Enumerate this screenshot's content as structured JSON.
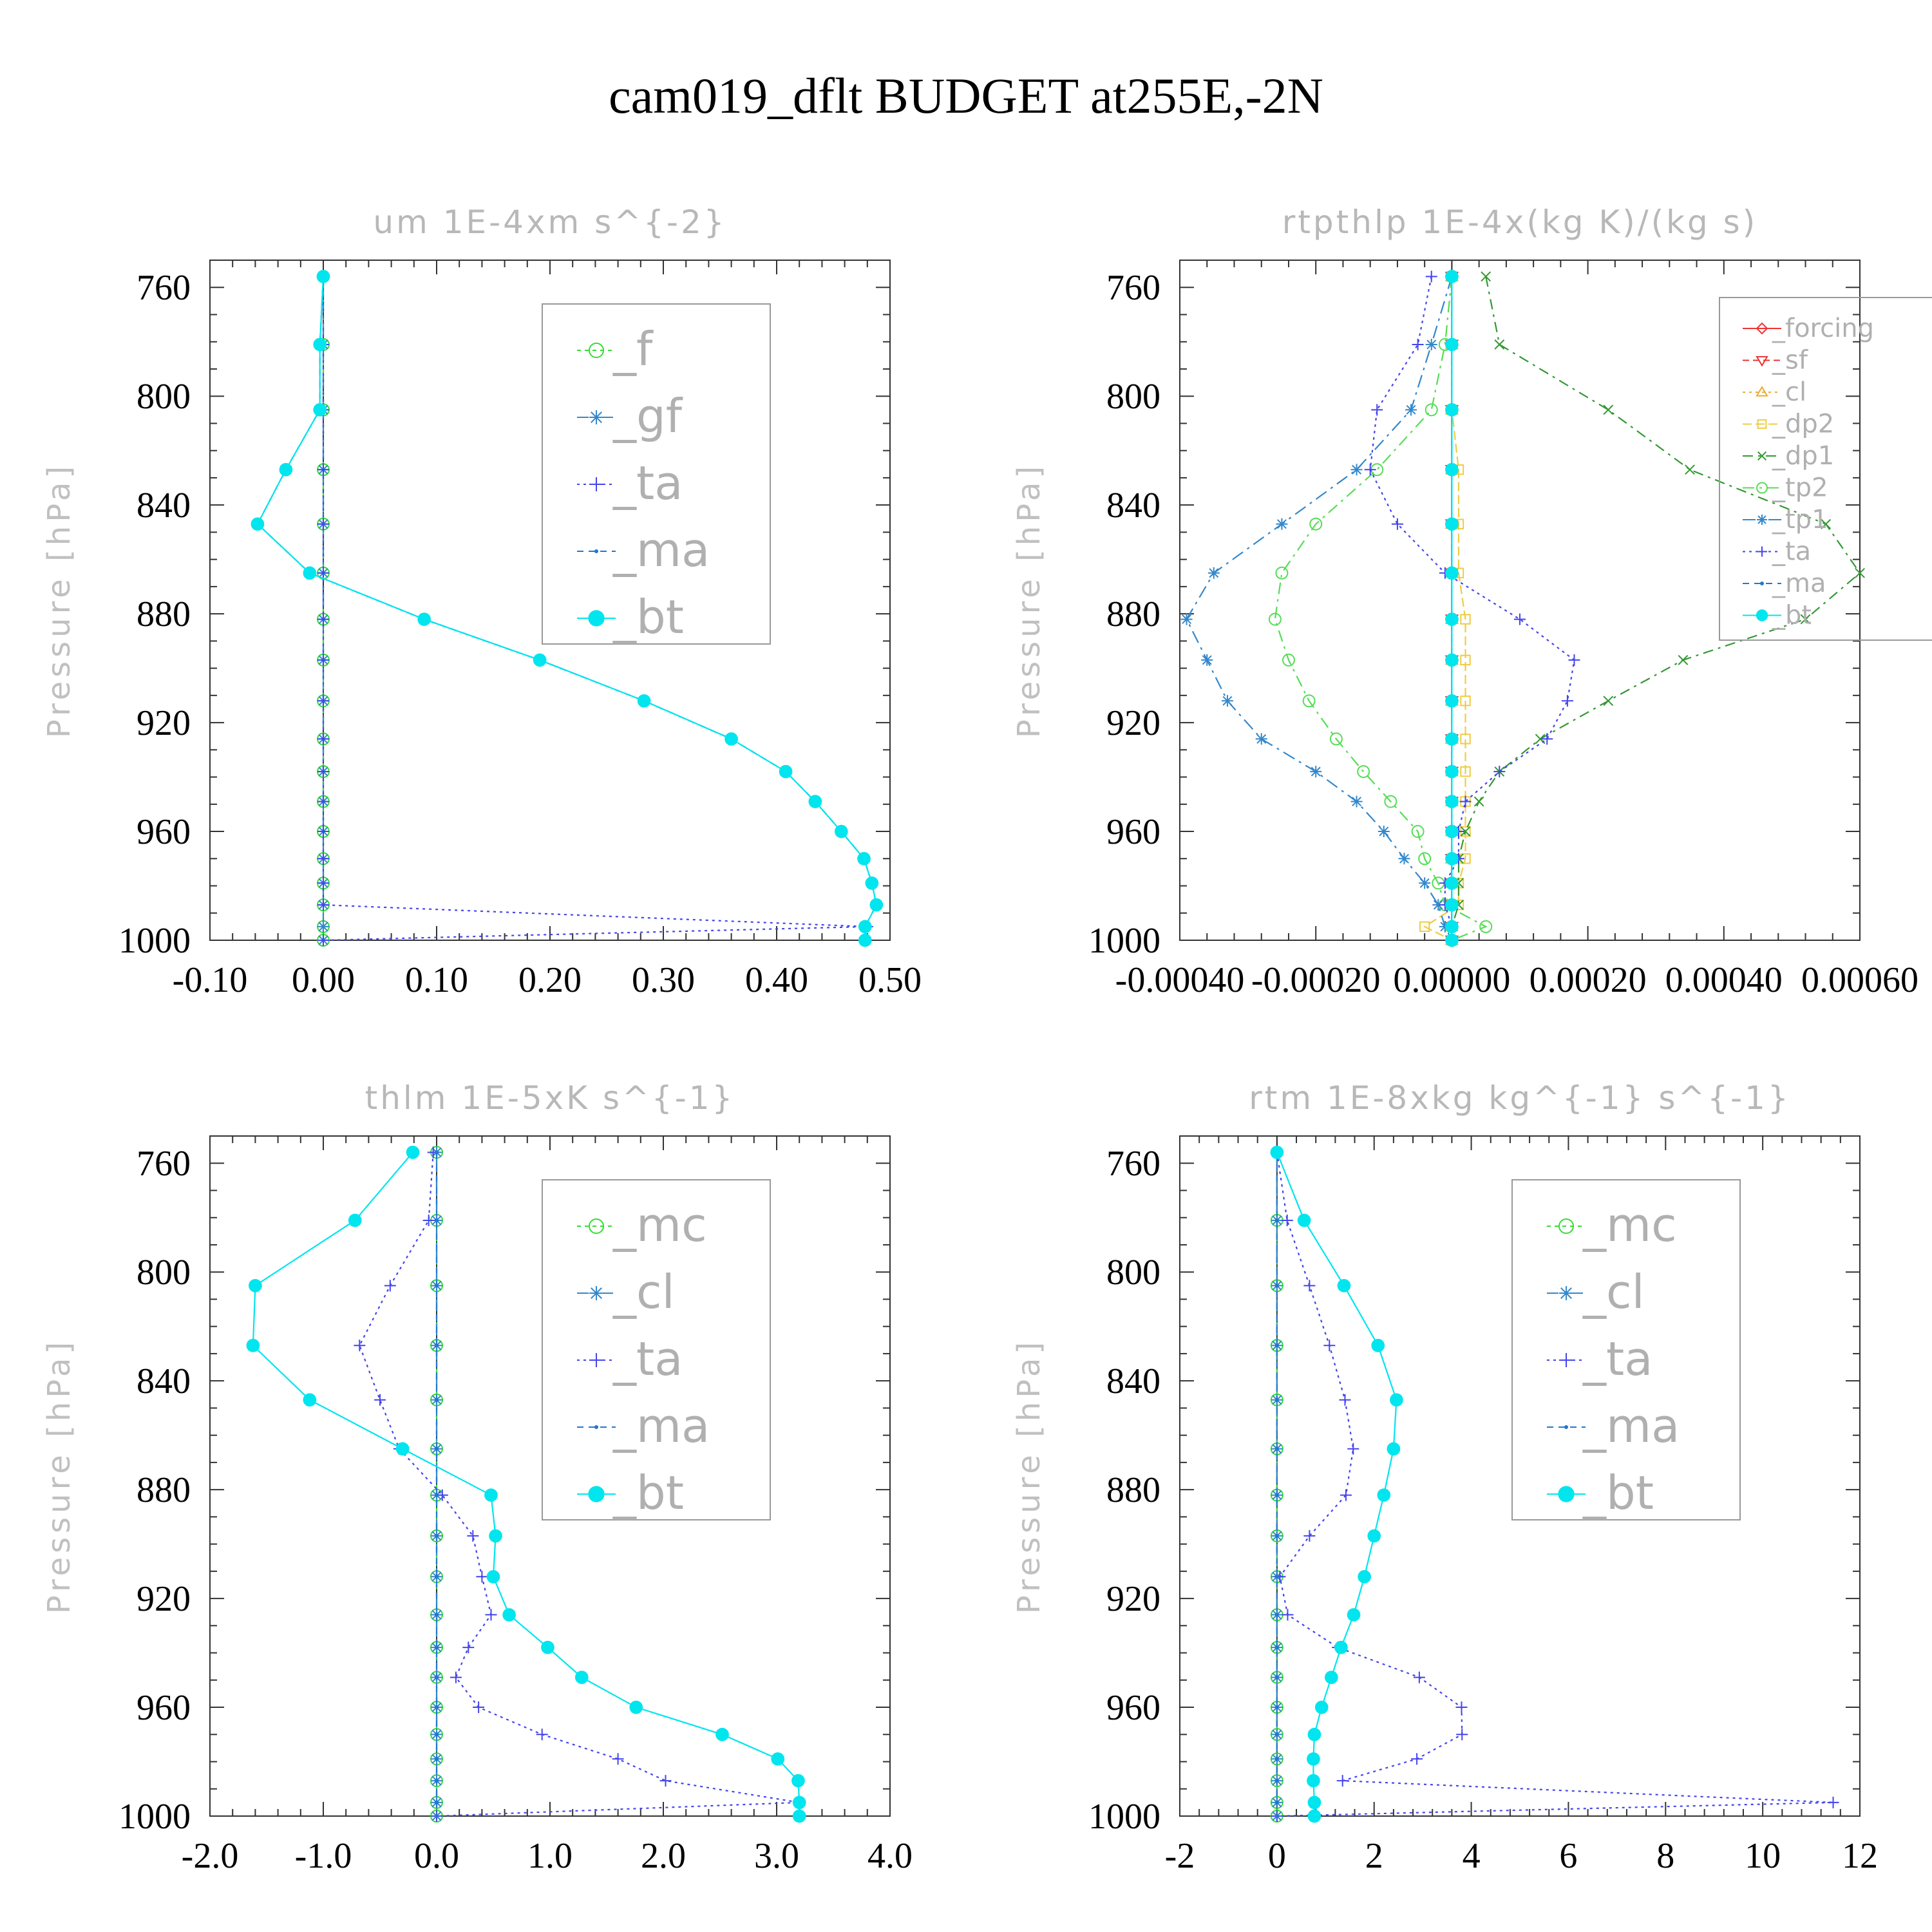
{
  "title": "cam019_dflt  BUDGET at255E,-2N",
  "chart_data": [
    {
      "type": "line",
      "title": "um  1E-4xm s^{-2}",
      "ylabel": "Pressure [hPa]",
      "xlim": [
        -0.1,
        0.5
      ],
      "ylim": [
        1000,
        750
      ],
      "xticks": [
        "-0.10",
        "0.00",
        "0.10",
        "0.20",
        "0.30",
        "0.40",
        "0.50"
      ],
      "xtick_values": [
        -0.1,
        0.0,
        0.1,
        0.2,
        0.3,
        0.4,
        0.5
      ],
      "yticks": [
        "760",
        "800",
        "840",
        "880",
        "920",
        "960",
        "1000"
      ],
      "ytick_values": [
        760,
        800,
        840,
        880,
        920,
        960,
        1000
      ],
      "legend_position": "top-right",
      "legend_size": "large",
      "y": [
        756,
        781,
        805,
        827,
        847,
        865,
        882,
        897,
        912,
        926,
        938,
        949,
        960,
        970,
        979,
        987,
        995,
        1000
      ],
      "series": [
        {
          "name": "_f",
          "color": "#33dd33",
          "marker": "circle-open",
          "dash": "6,6",
          "x": [
            0,
            0,
            0,
            0,
            0,
            0,
            0,
            0,
            0,
            0,
            0,
            0,
            0,
            0,
            0,
            0,
            0,
            0
          ]
        },
        {
          "name": "_gf",
          "color": "#3388cc",
          "marker": "asterisk",
          "dash": "18,8,4,8",
          "x": [
            0,
            0,
            0,
            0,
            0,
            0,
            0,
            0,
            0,
            0,
            0,
            0,
            0,
            0,
            0,
            0,
            0,
            0
          ]
        },
        {
          "name": "_ta",
          "color": "#4444ee",
          "marker": "plus",
          "dash": "4,6",
          "x": [
            0.0,
            0.0,
            0.0,
            0.0,
            0.0,
            0.0,
            0.0,
            0.0,
            0.0,
            0.0,
            0.0,
            0.0,
            0.0,
            0.0,
            0.0,
            0.0,
            0.48,
            0.0
          ]
        },
        {
          "name": "_ma",
          "color": "#2277cc",
          "marker": "dot",
          "dash": "10,8",
          "x": [
            0.0,
            -0.003,
            -0.003,
            -0.033,
            -0.058,
            -0.012,
            0.089,
            0.191,
            0.283,
            0.36,
            0.408,
            0.434,
            0.457,
            0.477,
            0.484,
            0.488,
            0.478,
            0.478
          ]
        },
        {
          "name": "_bt",
          "color": "#00e5ee",
          "marker": "disk",
          "dash": "",
          "x": [
            0.0,
            -0.003,
            -0.003,
            -0.033,
            -0.058,
            -0.012,
            0.089,
            0.191,
            0.283,
            0.36,
            0.408,
            0.434,
            0.457,
            0.477,
            0.484,
            0.488,
            0.478,
            0.478
          ]
        }
      ]
    },
    {
      "type": "line",
      "title": "rtpthlp  1E-4x(kg K)/(kg s)",
      "ylabel": "Pressure [hPa]",
      "xlim": [
        -0.0004,
        0.0006
      ],
      "ylim": [
        1000,
        750
      ],
      "xticks": [
        "-0.00040",
        "-0.00020",
        "0.00000",
        "0.00020",
        "0.00040",
        "0.00060"
      ],
      "xtick_values": [
        -0.0004,
        -0.0002,
        0.0,
        0.0002,
        0.0004,
        0.0006
      ],
      "yticks": [
        "760",
        "800",
        "840",
        "880",
        "920",
        "960",
        "1000"
      ],
      "ytick_values": [
        760,
        800,
        840,
        880,
        920,
        960,
        1000
      ],
      "legend_position": "top-right",
      "legend_size": "small",
      "y": [
        756,
        781,
        805,
        827,
        847,
        865,
        882,
        897,
        912,
        926,
        938,
        949,
        960,
        970,
        979,
        987,
        995,
        1000
      ],
      "series": [
        {
          "name": "_forcing",
          "color": "#ee3333",
          "marker": "diamond-open",
          "dash": "",
          "x": [
            0,
            0,
            0,
            0,
            0,
            0,
            0,
            0,
            0,
            0,
            0,
            0,
            0,
            0,
            0,
            0,
            0,
            0
          ]
        },
        {
          "name": "_sf",
          "color": "#ee3333",
          "marker": "triangle-down-open",
          "dash": "10,6",
          "x": [
            0,
            0,
            0,
            0,
            0,
            0,
            0,
            0,
            0,
            0,
            0,
            0,
            0,
            0,
            0,
            0,
            0,
            0
          ]
        },
        {
          "name": "_cl",
          "color": "#eeaa33",
          "marker": "triangle-up-open",
          "dash": "4,6",
          "x": [
            0,
            0,
            0,
            0,
            0,
            0,
            0,
            0,
            0,
            0,
            0,
            0,
            0,
            0,
            0,
            0,
            0,
            0
          ]
        },
        {
          "name": "_dp2",
          "color": "#eecc44",
          "marker": "square-open",
          "dash": "14,6",
          "x": [
            0.0,
            0.0,
            0.0,
            1e-05,
            1e-05,
            1e-05,
            2e-05,
            2e-05,
            2e-05,
            2e-05,
            2e-05,
            2e-05,
            2e-05,
            2e-05,
            1e-05,
            1e-05,
            -4e-05,
            0.0
          ]
        },
        {
          "name": "_dp1",
          "color": "#339933",
          "marker": "x",
          "dash": "16,8,4,8",
          "x": [
            5e-05,
            7e-05,
            0.00023,
            0.00035,
            0.00055,
            0.0006,
            0.00052,
            0.00034,
            0.00023,
            0.00013,
            7e-05,
            4e-05,
            2e-05,
            1e-05,
            1e-05,
            1e-05,
            0.0,
            0.0
          ]
        },
        {
          "name": "_tp2",
          "color": "#55dd55",
          "marker": "circle-open",
          "dash": "18,8,4,8",
          "x": [
            0.0,
            -1e-05,
            -3e-05,
            -0.00011,
            -0.0002,
            -0.00025,
            -0.00026,
            -0.00024,
            -0.00021,
            -0.00017,
            -0.00013,
            -9e-05,
            -5e-05,
            -4e-05,
            -2e-05,
            -1e-05,
            5e-05,
            0.0
          ]
        },
        {
          "name": "_tp1",
          "color": "#3388cc",
          "marker": "asterisk",
          "dash": "20,8,4,8",
          "x": [
            0.0,
            -3e-05,
            -6e-05,
            -0.00014,
            -0.00025,
            -0.00035,
            -0.00039,
            -0.00036,
            -0.00033,
            -0.00028,
            -0.0002,
            -0.00014,
            -0.0001,
            -7e-05,
            -4e-05,
            -2e-05,
            -1e-05,
            0.0
          ]
        },
        {
          "name": "_ta",
          "color": "#4444ee",
          "marker": "plus",
          "dash": "4,6",
          "x": [
            -3e-05,
            -5e-05,
            -0.00011,
            -0.00012,
            -8e-05,
            -1e-05,
            0.0001,
            0.00018,
            0.00017,
            0.00014,
            7e-05,
            2e-05,
            1e-05,
            1e-05,
            -1e-05,
            -1e-05,
            0.0,
            0.0
          ]
        },
        {
          "name": "_ma",
          "color": "#2277cc",
          "marker": "dot",
          "dash": "10,8",
          "x": [
            0,
            0,
            0,
            0,
            0,
            0,
            0,
            0,
            0,
            0,
            0,
            0,
            0,
            0,
            0,
            0,
            0,
            0
          ]
        },
        {
          "name": "_bt",
          "color": "#00e5ee",
          "marker": "disk",
          "dash": "",
          "x": [
            0,
            0,
            0,
            0,
            0,
            0,
            0,
            0,
            0,
            0,
            0,
            0,
            0,
            0,
            0,
            0,
            0,
            0
          ]
        }
      ]
    },
    {
      "type": "line",
      "title": "thlm  1E-5xK s^{-1}",
      "ylabel": "Pressure [hPa]",
      "xlim": [
        -2.0,
        4.0
      ],
      "ylim": [
        1000,
        750
      ],
      "xticks": [
        "-2.0",
        "-1.0",
        "0.0",
        "1.0",
        "2.0",
        "3.0",
        "4.0"
      ],
      "xtick_values": [
        -2.0,
        -1.0,
        0.0,
        1.0,
        2.0,
        3.0,
        4.0
      ],
      "yticks": [
        "760",
        "800",
        "840",
        "880",
        "920",
        "960",
        "1000"
      ],
      "ytick_values": [
        760,
        800,
        840,
        880,
        920,
        960,
        1000
      ],
      "legend_position": "top-right",
      "legend_size": "large",
      "y": [
        756,
        781,
        805,
        827,
        847,
        865,
        882,
        897,
        912,
        926,
        938,
        949,
        960,
        970,
        979,
        987,
        995,
        1000
      ],
      "series": [
        {
          "name": "_mc",
          "color": "#33dd33",
          "marker": "circle-open",
          "dash": "6,6",
          "x": [
            0,
            0,
            0,
            0,
            0,
            0,
            0,
            0,
            0,
            0,
            0,
            0,
            0,
            0,
            0,
            0,
            0,
            0
          ]
        },
        {
          "name": "_cl",
          "color": "#3388cc",
          "marker": "asterisk",
          "dash": "18,8,4,8",
          "x": [
            0,
            0,
            0,
            0,
            0,
            0,
            0,
            0,
            0,
            0,
            0,
            0,
            0,
            0,
            0,
            0,
            0,
            0
          ]
        },
        {
          "name": "_ta",
          "color": "#4444ee",
          "marker": "plus",
          "dash": "4,6",
          "x": [
            -0.03,
            -0.07,
            -0.41,
            -0.68,
            -0.5,
            -0.33,
            0.05,
            0.32,
            0.4,
            0.48,
            0.28,
            0.17,
            0.37,
            0.93,
            1.6,
            2.02,
            3.2,
            0.0
          ]
        },
        {
          "name": "_ma",
          "color": "#2277cc",
          "marker": "dot",
          "dash": "10,8",
          "x": [
            0,
            0,
            0,
            0,
            0,
            0,
            0,
            0,
            0,
            0,
            0,
            0,
            0,
            0,
            0,
            0,
            0,
            0
          ]
        },
        {
          "name": "_bt",
          "color": "#00e5ee",
          "marker": "disk",
          "dash": "",
          "x": [
            -0.21,
            -0.72,
            -1.6,
            -1.62,
            -1.12,
            -0.3,
            0.48,
            0.52,
            0.5,
            0.64,
            0.98,
            1.28,
            1.76,
            2.52,
            3.01,
            3.19,
            3.2,
            3.2
          ]
        }
      ]
    },
    {
      "type": "line",
      "title": "rtm  1E-8xkg kg^{-1} s^{-1}",
      "ylabel": "Pressure [hPa]",
      "xlim": [
        -2,
        12
      ],
      "ylim": [
        1000,
        750
      ],
      "xticks": [
        "-2",
        "0",
        "2",
        "4",
        "6",
        "8",
        "10",
        "12"
      ],
      "xtick_values": [
        -2,
        0,
        2,
        4,
        6,
        8,
        10,
        12
      ],
      "yticks": [
        "760",
        "800",
        "840",
        "880",
        "920",
        "960",
        "1000"
      ],
      "ytick_values": [
        760,
        800,
        840,
        880,
        920,
        960,
        1000
      ],
      "legend_position": "top-right",
      "legend_size": "large",
      "y": [
        756,
        781,
        805,
        827,
        847,
        865,
        882,
        897,
        912,
        926,
        938,
        949,
        960,
        970,
        979,
        987,
        995,
        1000
      ],
      "series": [
        {
          "name": "_mc",
          "color": "#33dd33",
          "marker": "circle-open",
          "dash": "6,6",
          "x": [
            0,
            0,
            0,
            0,
            0,
            0,
            0,
            0,
            0,
            0,
            0,
            0,
            0,
            0,
            0,
            0,
            0,
            0
          ]
        },
        {
          "name": "_cl",
          "color": "#3388cc",
          "marker": "asterisk",
          "dash": "18,8,4,8",
          "x": [
            0,
            0,
            0,
            0,
            0,
            0,
            0,
            0,
            0,
            0,
            0,
            0,
            0,
            0,
            0,
            0,
            0,
            0
          ]
        },
        {
          "name": "_ta",
          "color": "#4444ee",
          "marker": "plus",
          "dash": "4,6",
          "x": [
            0.0,
            0.21,
            0.67,
            1.08,
            1.4,
            1.57,
            1.42,
            0.67,
            0.06,
            0.22,
            1.25,
            2.93,
            3.8,
            3.81,
            2.88,
            1.35,
            11.45,
            0.0
          ]
        },
        {
          "name": "_ma",
          "color": "#2277cc",
          "marker": "dot",
          "dash": "10,8",
          "x": [
            0,
            0,
            0,
            0,
            0,
            0,
            0,
            0,
            0,
            0,
            0,
            0,
            0,
            0,
            0,
            0,
            0,
            0
          ]
        },
        {
          "name": "_bt",
          "color": "#00e5ee",
          "marker": "disk",
          "dash": "",
          "x": [
            0.0,
            0.56,
            1.38,
            2.08,
            2.46,
            2.4,
            2.2,
            2.0,
            1.8,
            1.58,
            1.32,
            1.12,
            0.92,
            0.77,
            0.75,
            0.75,
            0.77,
            0.77
          ]
        }
      ]
    }
  ]
}
